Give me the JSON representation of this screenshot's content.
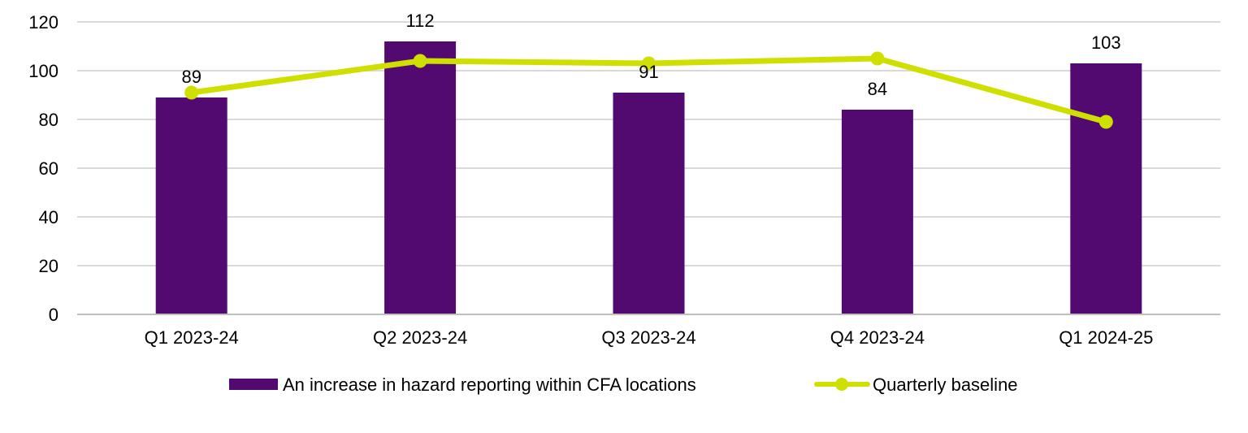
{
  "colors": {
    "bar": "#520970",
    "line": "#cfe000",
    "grid": "#d9d9d9",
    "axis": "#bfbfbf",
    "text": "#000000"
  },
  "chart_data": {
    "type": "bar",
    "title": "",
    "xlabel": "",
    "ylabel": "",
    "ylim": [
      0,
      120
    ],
    "yticks": [
      0,
      20,
      40,
      60,
      80,
      100,
      120
    ],
    "grid": true,
    "legend_position": "bottom",
    "categories": [
      "Q1 2023-24",
      "Q2 2023-24",
      "Q3 2023-24",
      "Q4 2023-24",
      "Q1 2024-25"
    ],
    "series": [
      {
        "name": "An increase in hazard reporting within CFA locations",
        "type": "bar",
        "values": [
          89,
          112,
          91,
          84,
          103
        ],
        "data_labels": [
          "89",
          "112",
          "91",
          "84",
          "103"
        ]
      },
      {
        "name": "Quarterly baseline",
        "type": "line",
        "values": [
          91,
          104,
          103,
          105,
          79
        ]
      }
    ]
  }
}
